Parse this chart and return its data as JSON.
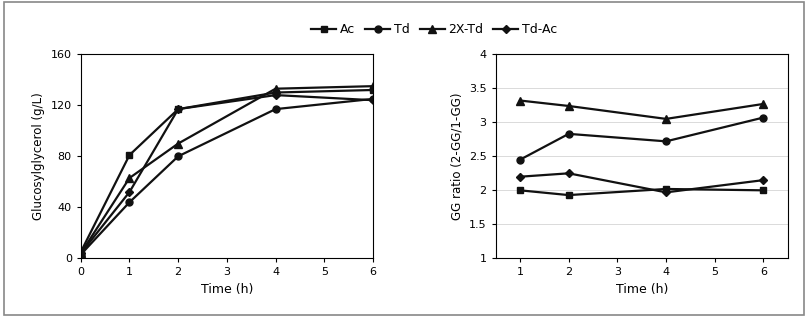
{
  "legend_labels": [
    "Ac",
    "Td",
    "2X-Td",
    "Td-Ac"
  ],
  "left_chart": {
    "xlabel": "Time (h)",
    "ylabel": "Glucosylglycerol (g/L)",
    "xlim": [
      0,
      6
    ],
    "ylim": [
      0,
      160
    ],
    "xticks": [
      0,
      1,
      2,
      3,
      4,
      5,
      6
    ],
    "yticks": [
      0,
      40,
      80,
      120,
      160
    ],
    "series": {
      "Ac": {
        "x": [
          0,
          1,
          2,
          4,
          6
        ],
        "y": [
          5,
          81,
          117,
          130,
          132
        ]
      },
      "Td": {
        "x": [
          0,
          1,
          2,
          4,
          6
        ],
        "y": [
          3,
          44,
          80,
          117,
          125
        ]
      },
      "2X-Td": {
        "x": [
          0,
          1,
          2,
          4,
          6
        ],
        "y": [
          4,
          63,
          90,
          133,
          135
        ]
      },
      "Td-Ac": {
        "x": [
          0,
          1,
          2,
          4,
          6
        ],
        "y": [
          4,
          52,
          117,
          128,
          124
        ]
      }
    }
  },
  "right_chart": {
    "xlabel": "Time (h)",
    "ylabel": "GG ratio (2-GG/1-GG)",
    "xlim": [
      0.5,
      6.5
    ],
    "ylim": [
      1,
      4
    ],
    "xticks": [
      1,
      2,
      3,
      4,
      5,
      6
    ],
    "yticks": [
      1,
      1.5,
      2,
      2.5,
      3,
      3.5,
      4
    ],
    "ytick_labels": [
      "1",
      "1.5",
      "2",
      "2.5",
      "3",
      "3.5",
      "4"
    ],
    "series": {
      "Ac": {
        "x": [
          1,
          2,
          4,
          6
        ],
        "y": [
          2.0,
          1.93,
          2.02,
          2.0
        ]
      },
      "Td": {
        "x": [
          1,
          2,
          4,
          6
        ],
        "y": [
          2.45,
          2.83,
          2.72,
          3.07
        ]
      },
      "2X-Td": {
        "x": [
          1,
          2,
          4,
          6
        ],
        "y": [
          3.32,
          3.24,
          3.05,
          3.27
        ]
      },
      "Td-Ac": {
        "x": [
          1,
          2,
          4,
          6
        ],
        "y": [
          2.2,
          2.25,
          1.97,
          2.15
        ]
      }
    }
  },
  "series_styles": {
    "Ac": {
      "marker": "s",
      "linestyle": "-",
      "color": "#111111",
      "markersize": 5
    },
    "Td": {
      "marker": "o",
      "linestyle": "-",
      "color": "#111111",
      "markersize": 5
    },
    "2X-Td": {
      "marker": "^",
      "linestyle": "-",
      "color": "#111111",
      "markersize": 6
    },
    "Td-Ac": {
      "marker": "D",
      "linestyle": "-",
      "color": "#111111",
      "markersize": 4
    }
  },
  "background_color": "#ffffff",
  "border_color": "#888888",
  "figsize": [
    8.08,
    3.17
  ],
  "dpi": 100
}
